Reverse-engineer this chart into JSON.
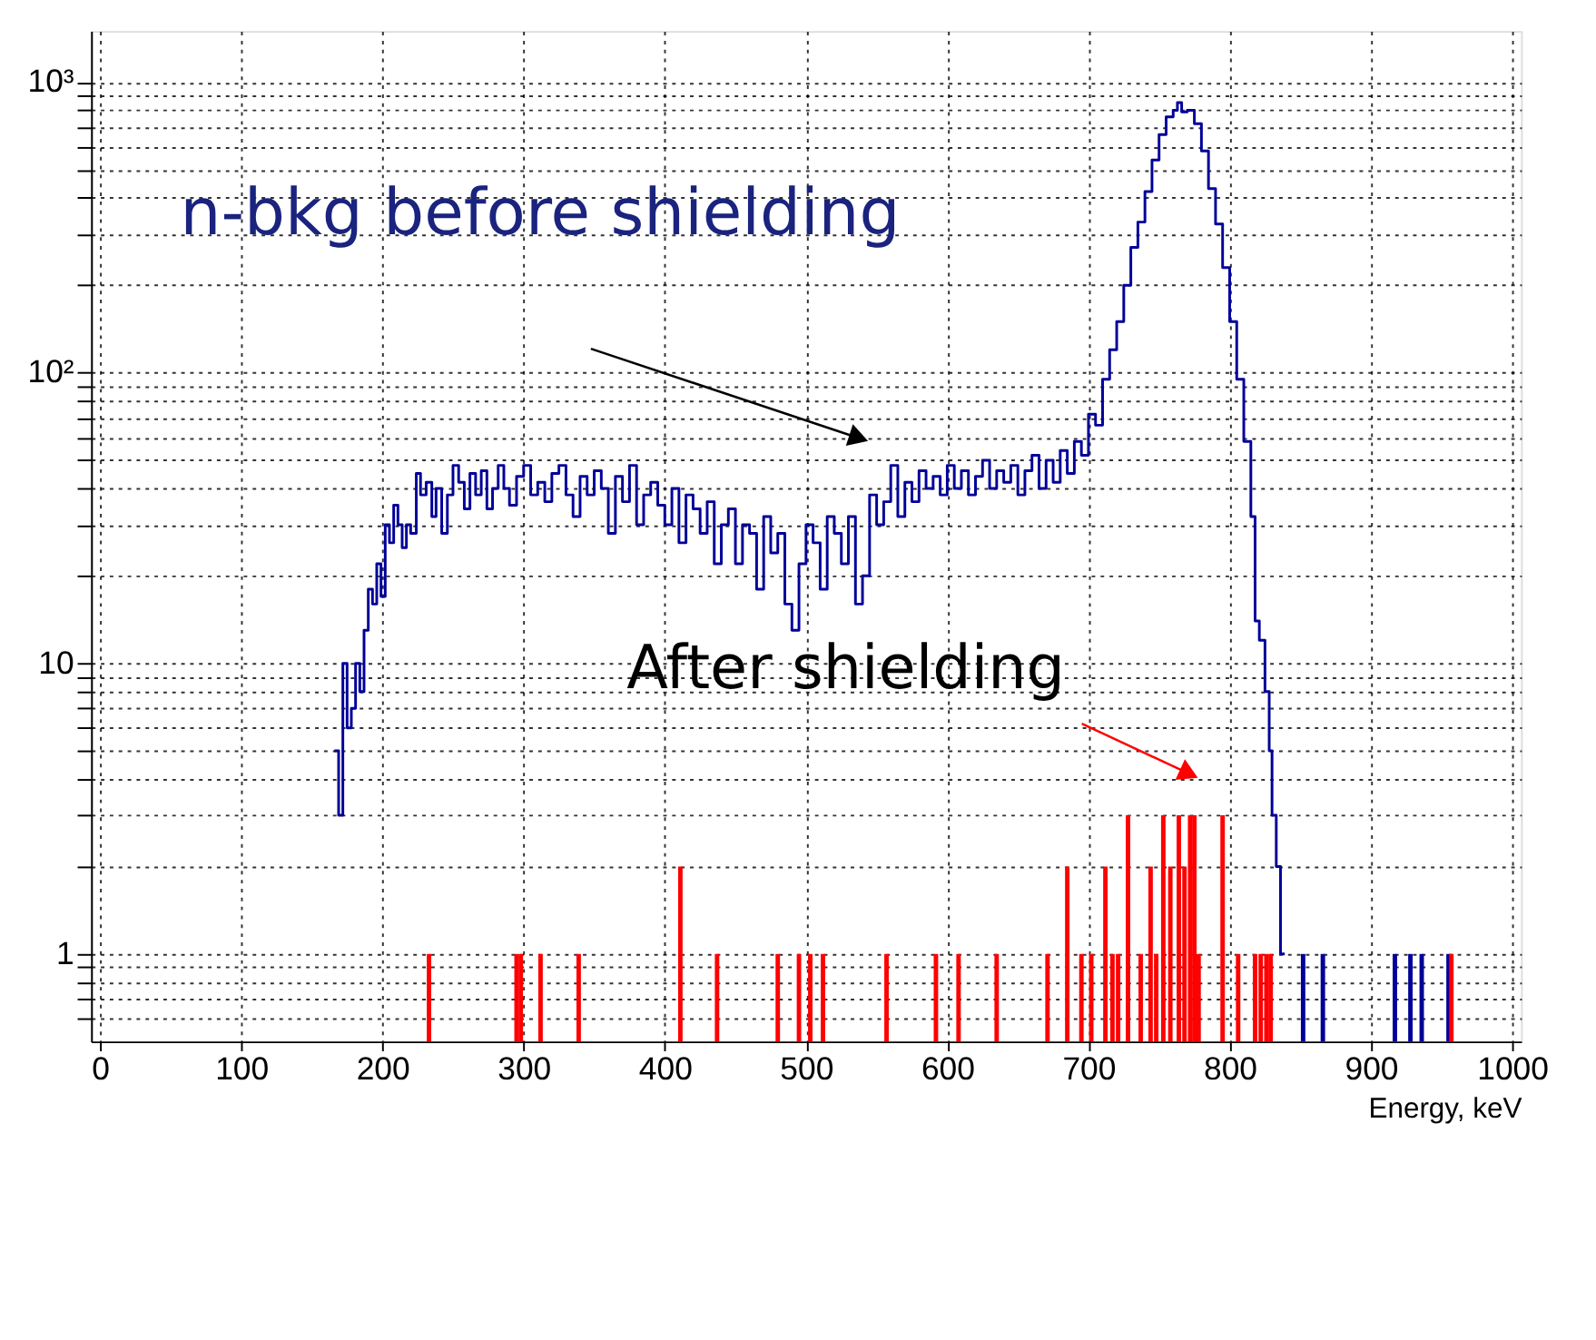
{
  "chart_data": {
    "type": "step",
    "xlabel": "Energy, keV",
    "xlim": [
      0,
      1000
    ],
    "xticks": [
      0,
      100,
      200,
      300,
      400,
      500,
      600,
      700,
      800,
      900,
      1000
    ],
    "ylim": [
      0.5,
      1500
    ],
    "log": true,
    "grid": true,
    "yticks": [
      {
        "value": 0.6,
        "label": null
      },
      {
        "value": 0.7,
        "label": null
      },
      {
        "value": 0.8,
        "label": null
      },
      {
        "value": 0.9,
        "label": null
      },
      1,
      {
        "value": 2,
        "label": null
      },
      {
        "value": 3,
        "label": null
      },
      {
        "value": 4,
        "label": null
      },
      {
        "value": 5,
        "label": null
      },
      {
        "value": 6,
        "label": null
      },
      {
        "value": 7,
        "label": null
      },
      {
        "value": 8,
        "label": null
      },
      {
        "value": 9,
        "label": null
      },
      10,
      {
        "value": 20,
        "label": null
      },
      {
        "value": 30,
        "label": null
      },
      {
        "value": 40,
        "label": null
      },
      {
        "value": 50,
        "label": null
      },
      {
        "value": 60,
        "label": null
      },
      {
        "value": 70,
        "label": null
      },
      {
        "value": 80,
        "label": null
      },
      {
        "value": 90,
        "label": null
      },
      {
        "value": 100,
        "label": "10²"
      },
      {
        "value": 200,
        "label": null
      },
      {
        "value": 300,
        "label": null
      },
      {
        "value": 400,
        "label": null
      },
      {
        "value": 500,
        "label": null
      },
      {
        "value": 600,
        "label": null
      },
      {
        "value": 700,
        "label": null
      },
      {
        "value": 800,
        "label": null
      },
      {
        "value": 900,
        "label": null
      },
      {
        "value": 1000,
        "label": "10³"
      }
    ],
    "annotations": [
      "n-bkg before shielding",
      "After shielding"
    ],
    "series": [
      {
        "color": "#000099",
        "x": [
          166,
          169,
          172,
          175,
          178,
          181,
          184,
          187,
          190,
          193,
          196,
          199,
          202,
          205,
          208,
          211,
          214,
          217,
          220,
          224,
          227,
          231,
          235,
          238,
          242,
          246,
          250,
          254,
          258,
          262,
          266,
          270,
          274,
          278,
          282,
          286,
          290,
          295,
          300,
          305,
          310,
          315,
          320,
          325,
          330,
          335,
          340,
          345,
          350,
          355,
          360,
          365,
          370,
          375,
          380,
          385,
          390,
          395,
          400,
          405,
          410,
          415,
          420,
          425,
          430,
          435,
          440,
          445,
          450,
          455,
          460,
          465,
          470,
          475,
          480,
          485,
          490,
          495,
          500,
          505,
          510,
          515,
          520,
          525,
          530,
          535,
          540,
          545,
          550,
          555,
          560,
          565,
          570,
          575,
          580,
          585,
          590,
          595,
          600,
          605,
          610,
          615,
          620,
          625,
          630,
          635,
          640,
          645,
          650,
          655,
          660,
          665,
          670,
          675,
          680,
          685,
          690,
          695,
          700,
          705,
          710,
          715,
          720,
          725,
          730,
          735,
          740,
          745,
          750,
          755,
          760,
          763,
          766,
          770,
          775,
          780,
          785,
          790,
          795,
          800,
          805,
          810,
          815,
          818,
          821,
          825,
          828,
          830,
          833,
          836,
          839
        ],
        "values": [
          5,
          3,
          10,
          6,
          7,
          10,
          8,
          13,
          18,
          16,
          22,
          17,
          30,
          26,
          35,
          30,
          25,
          30,
          28,
          45,
          38,
          42,
          32,
          40,
          28,
          38,
          48,
          42,
          34,
          45,
          38,
          46,
          34,
          40,
          48,
          40,
          35,
          44,
          48,
          38,
          42,
          36,
          45,
          48,
          38,
          32,
          44,
          38,
          46,
          40,
          28,
          44,
          36,
          48,
          30,
          38,
          42,
          35,
          30,
          40,
          26,
          38,
          34,
          28,
          36,
          22,
          30,
          34,
          22,
          30,
          28,
          18,
          32,
          24,
          28,
          16,
          13,
          22,
          30,
          26,
          18,
          32,
          28,
          22,
          32,
          16,
          20,
          38,
          30,
          36,
          48,
          32,
          42,
          36,
          46,
          40,
          44,
          38,
          48,
          40,
          46,
          38,
          44,
          50,
          40,
          46,
          42,
          48,
          38,
          46,
          52,
          40,
          50,
          42,
          54,
          45,
          58,
          52,
          72,
          66,
          95,
          120,
          150,
          200,
          270,
          330,
          420,
          540,
          660,
          760,
          800,
          850,
          790,
          800,
          720,
          580,
          430,
          325,
          230,
          150,
          95,
          58,
          32,
          14,
          12,
          8,
          5,
          3,
          2,
          1,
          1
        ]
      },
      {
        "type": "bar",
        "color": "#000099",
        "x": [
          852,
          866,
          917,
          928,
          936,
          955
        ],
        "values": [
          1,
          1,
          1,
          1,
          1,
          1
        ]
      },
      {
        "type": "bar",
        "color": "#ff0000",
        "x": [
          233,
          295,
          298,
          312,
          339,
          411,
          437,
          480,
          495,
          503,
          512,
          557,
          592,
          608,
          635,
          671,
          685,
          695,
          702,
          712,
          717,
          721,
          728,
          737,
          744,
          748,
          753,
          758,
          764,
          768,
          772,
          775,
          778,
          795,
          806,
          818,
          822,
          826,
          829,
          957
        ],
        "values": [
          1,
          1,
          1,
          1,
          1,
          2,
          1,
          1,
          1,
          1,
          1,
          1,
          1,
          1,
          1,
          1,
          2,
          1,
          1,
          2,
          1,
          1,
          3,
          1,
          2,
          1,
          3,
          2,
          3,
          2,
          3,
          3,
          1,
          3,
          1,
          1,
          1,
          1,
          1,
          1
        ]
      }
    ]
  }
}
